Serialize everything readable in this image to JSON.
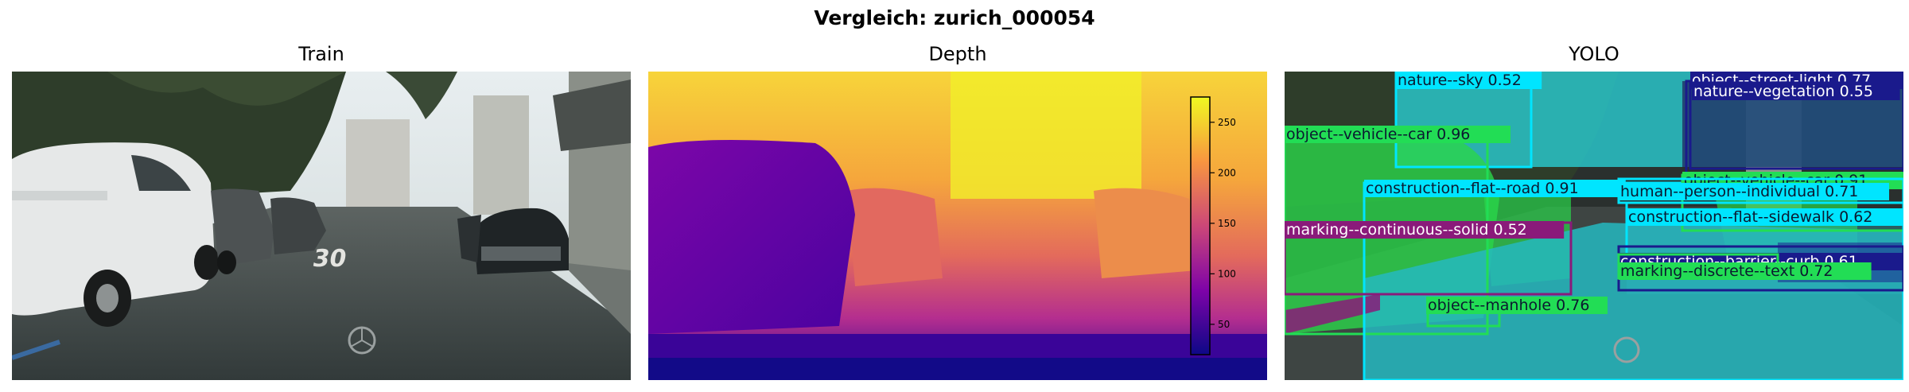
{
  "figure": {
    "title": "Vergleich: zurich_000054"
  },
  "panels": [
    {
      "title": "Train"
    },
    {
      "title": "Depth"
    },
    {
      "title": "YOLO"
    }
  ],
  "train_scene": {
    "road_marking": "30"
  },
  "colorbar": {
    "ticks": [
      "250",
      "200",
      "150",
      "100",
      "50"
    ],
    "tick_values": [
      250,
      200,
      150,
      100,
      50
    ],
    "range": [
      20,
      275
    ],
    "colormap": "plasma"
  },
  "detections": [
    {
      "label": "nature--sky 0.52",
      "color": "#00e5ff"
    },
    {
      "label": "object--street-light 0.77",
      "color": "#1a1a8c"
    },
    {
      "label": "nature--vegetation 0.55",
      "color": "#1a1a8c"
    },
    {
      "label": "object--vehicle--car 0.96",
      "color": "#22dd55"
    },
    {
      "label": "construction--flat--road 0.91",
      "color": "#00e5ff"
    },
    {
      "label": "object--vehicle--car 0.91",
      "color": "#22dd55"
    },
    {
      "label": "human--person--individual 0.71",
      "color": "#00e5ff"
    },
    {
      "label": "construction--flat--sidewalk 0.62",
      "color": "#00e5ff"
    },
    {
      "label": "marking--continuous--solid 0.52",
      "color": "#8a1a7a"
    },
    {
      "label": "construction--barrier--curb 0.61",
      "color": "#1a1a8c"
    },
    {
      "label": "marking--discrete--text 0.72",
      "color": "#22dd55"
    },
    {
      "label": "object--manhole 0.76",
      "color": "#22dd55"
    }
  ]
}
